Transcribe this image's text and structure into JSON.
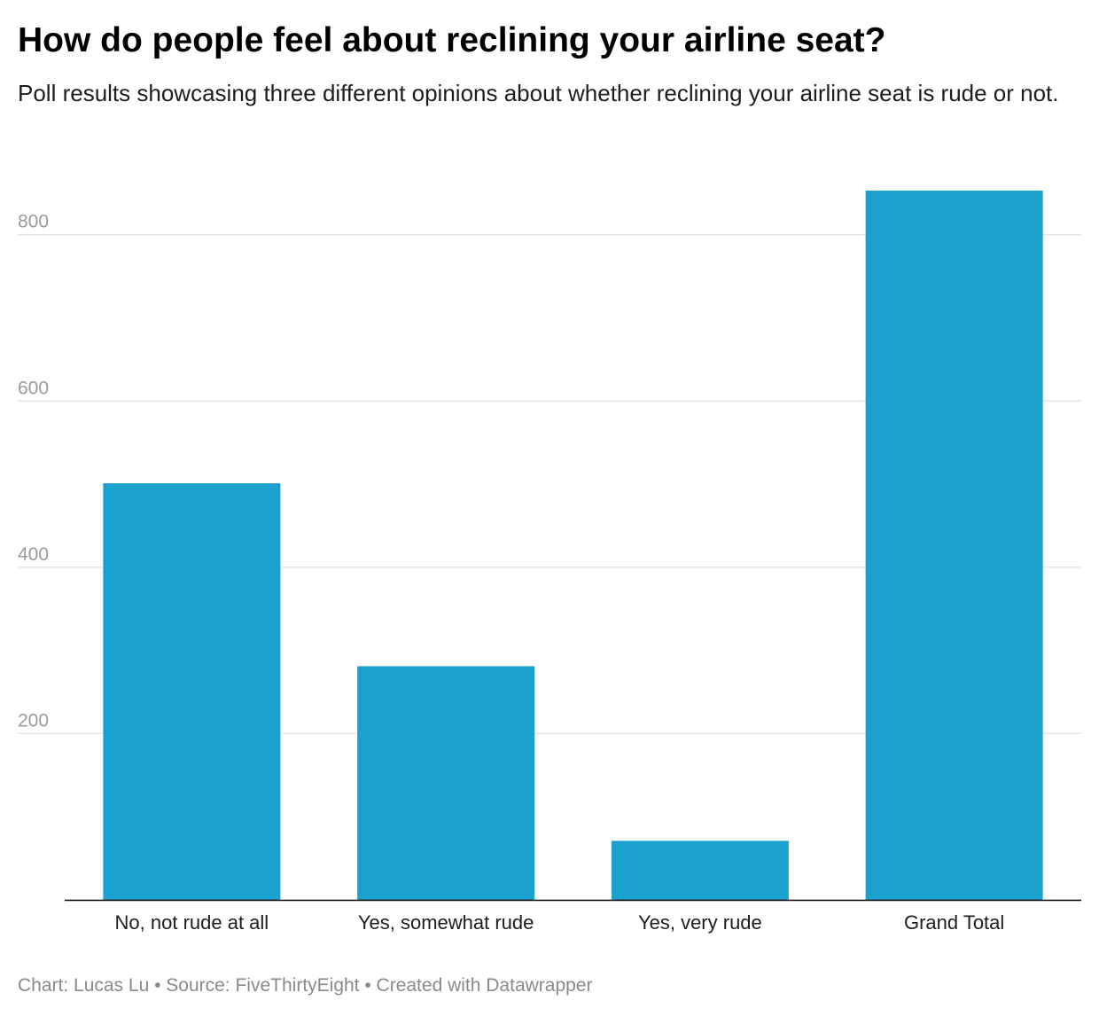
{
  "title": "How do people feel about reclining your airline seat?",
  "subtitle": "Poll results showcasing three different opinions about whether reclining your airline seat is rude or not.",
  "footer": "Chart: Lucas Lu • Source: FiveThirtyEight • Created with Datawrapper",
  "colors": {
    "bar": "#1aa1ce",
    "grid": "#e5e5e5",
    "tick_text": "#9a9a9a",
    "axis": "#000000"
  },
  "chart_data": {
    "type": "bar",
    "categories": [
      "No, not rude at all",
      "Yes, somewhat rude",
      "Yes, very rude",
      "Grand Total"
    ],
    "values": [
      501,
      281,
      71,
      853
    ],
    "ylim": [
      0,
      853
    ],
    "yticks": [
      200,
      400,
      600,
      800
    ],
    "grid": true
  }
}
